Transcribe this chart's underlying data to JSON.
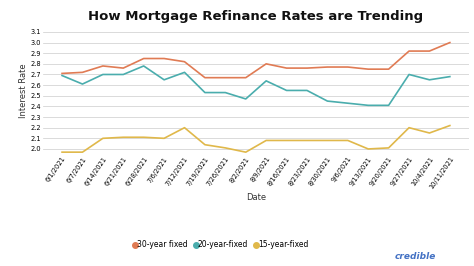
{
  "title": "How Mortgage Refinance Rates are Trending",
  "xlabel": "Date",
  "ylabel": "Interest Rate",
  "ylim": [
    1.95,
    3.15
  ],
  "yticks": [
    2.0,
    2.1,
    2.2,
    2.3,
    2.4,
    2.5,
    2.6,
    2.7,
    2.8,
    2.9,
    3.0,
    3.1
  ],
  "dates": [
    "6/1/2021",
    "6/7/2021",
    "6/14/2021",
    "6/21/2021",
    "6/28/2021",
    "7/6/2021",
    "7/12/2021",
    "7/19/2021",
    "7/26/2021",
    "8/2/2021",
    "8/9/2021",
    "8/16/2021",
    "8/23/2021",
    "8/30/2021",
    "9/6/2021",
    "9/13/2021",
    "9/20/2021",
    "9/27/2021",
    "10/4/2021",
    "10/11/2021"
  ],
  "rate_30yr": [
    2.71,
    2.72,
    2.78,
    2.76,
    2.85,
    2.85,
    2.82,
    2.67,
    2.67,
    2.67,
    2.8,
    2.76,
    2.76,
    2.77,
    2.77,
    2.75,
    2.75,
    2.92,
    2.92,
    3.0
  ],
  "rate_20yr": [
    2.69,
    2.61,
    2.7,
    2.7,
    2.78,
    2.65,
    2.72,
    2.53,
    2.53,
    2.47,
    2.64,
    2.55,
    2.55,
    2.45,
    2.43,
    2.41,
    2.41,
    2.7,
    2.65,
    2.68
  ],
  "rate_15yr": [
    1.97,
    1.97,
    2.1,
    2.11,
    2.11,
    2.1,
    2.2,
    2.04,
    2.01,
    1.97,
    2.08,
    2.08,
    2.08,
    2.08,
    2.08,
    2.0,
    2.01,
    2.2,
    2.15,
    2.22
  ],
  "color_30yr": "#E07B54",
  "color_20yr": "#4AADAD",
  "color_15yr": "#E0B84A",
  "legend_labels": [
    "30-year fixed",
    "20-year-fixed",
    "15-year-fixed"
  ],
  "bg_color": "#FFFFFF",
  "grid_color": "#CCCCCC",
  "credible_color": "#4472C4",
  "title_fontsize": 9.5,
  "label_fontsize": 6,
  "tick_fontsize": 4.8,
  "legend_fontsize": 5.5,
  "line_width": 1.2
}
